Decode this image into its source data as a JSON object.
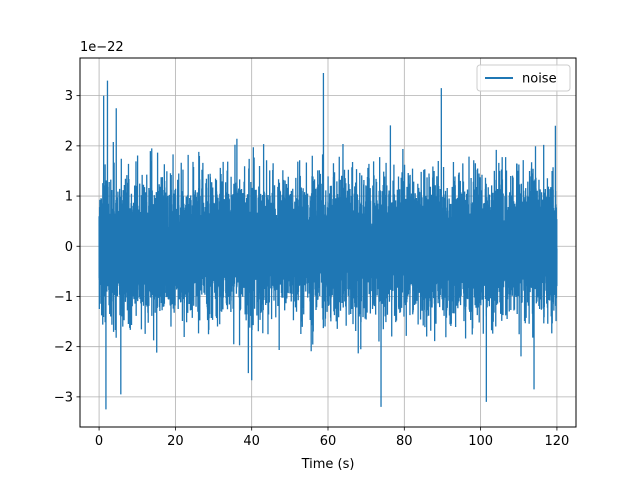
{
  "chart_data": {
    "type": "line",
    "title": "",
    "xlabel": "Time (s)",
    "ylabel": "",
    "y_offset_label": "1e−22",
    "xlim": [
      -5,
      125
    ],
    "ylim": [
      -3.6,
      3.75
    ],
    "x_range": [
      0,
      120
    ],
    "x_ticks": [
      0,
      20,
      40,
      60,
      80,
      100,
      120
    ],
    "x_tick_labels": [
      "0",
      "20",
      "40",
      "60",
      "80",
      "100",
      "120"
    ],
    "y_ticks": [
      -3,
      -2,
      -1,
      0,
      1,
      2,
      3
    ],
    "y_tick_labels": [
      "−3",
      "−2",
      "−1",
      "0",
      "1",
      "2",
      "3"
    ],
    "grid": true,
    "legend_position": "upper-right",
    "series": [
      {
        "name": "noise",
        "color": "#1f77b4",
        "typical_band": [
          -2.0,
          2.0
        ],
        "peaks": [
          {
            "x": 1.2,
            "y": 3.0
          },
          {
            "x": 2.2,
            "y": 3.3
          },
          {
            "x": 4.5,
            "y": 2.75
          },
          {
            "x": 58.8,
            "y": 3.45
          },
          {
            "x": 89.7,
            "y": 3.15
          },
          {
            "x": 119.6,
            "y": 2.4
          }
        ],
        "troughs": [
          {
            "x": 1.8,
            "y": -3.25
          },
          {
            "x": 5.7,
            "y": -2.95
          },
          {
            "x": 73.9,
            "y": -3.2
          },
          {
            "x": 101.5,
            "y": -3.1
          },
          {
            "x": 114.0,
            "y": -2.85
          }
        ]
      }
    ]
  },
  "colors": {
    "axes": "#000000",
    "grid": "#b0b0b0",
    "background": "#ffffff"
  }
}
